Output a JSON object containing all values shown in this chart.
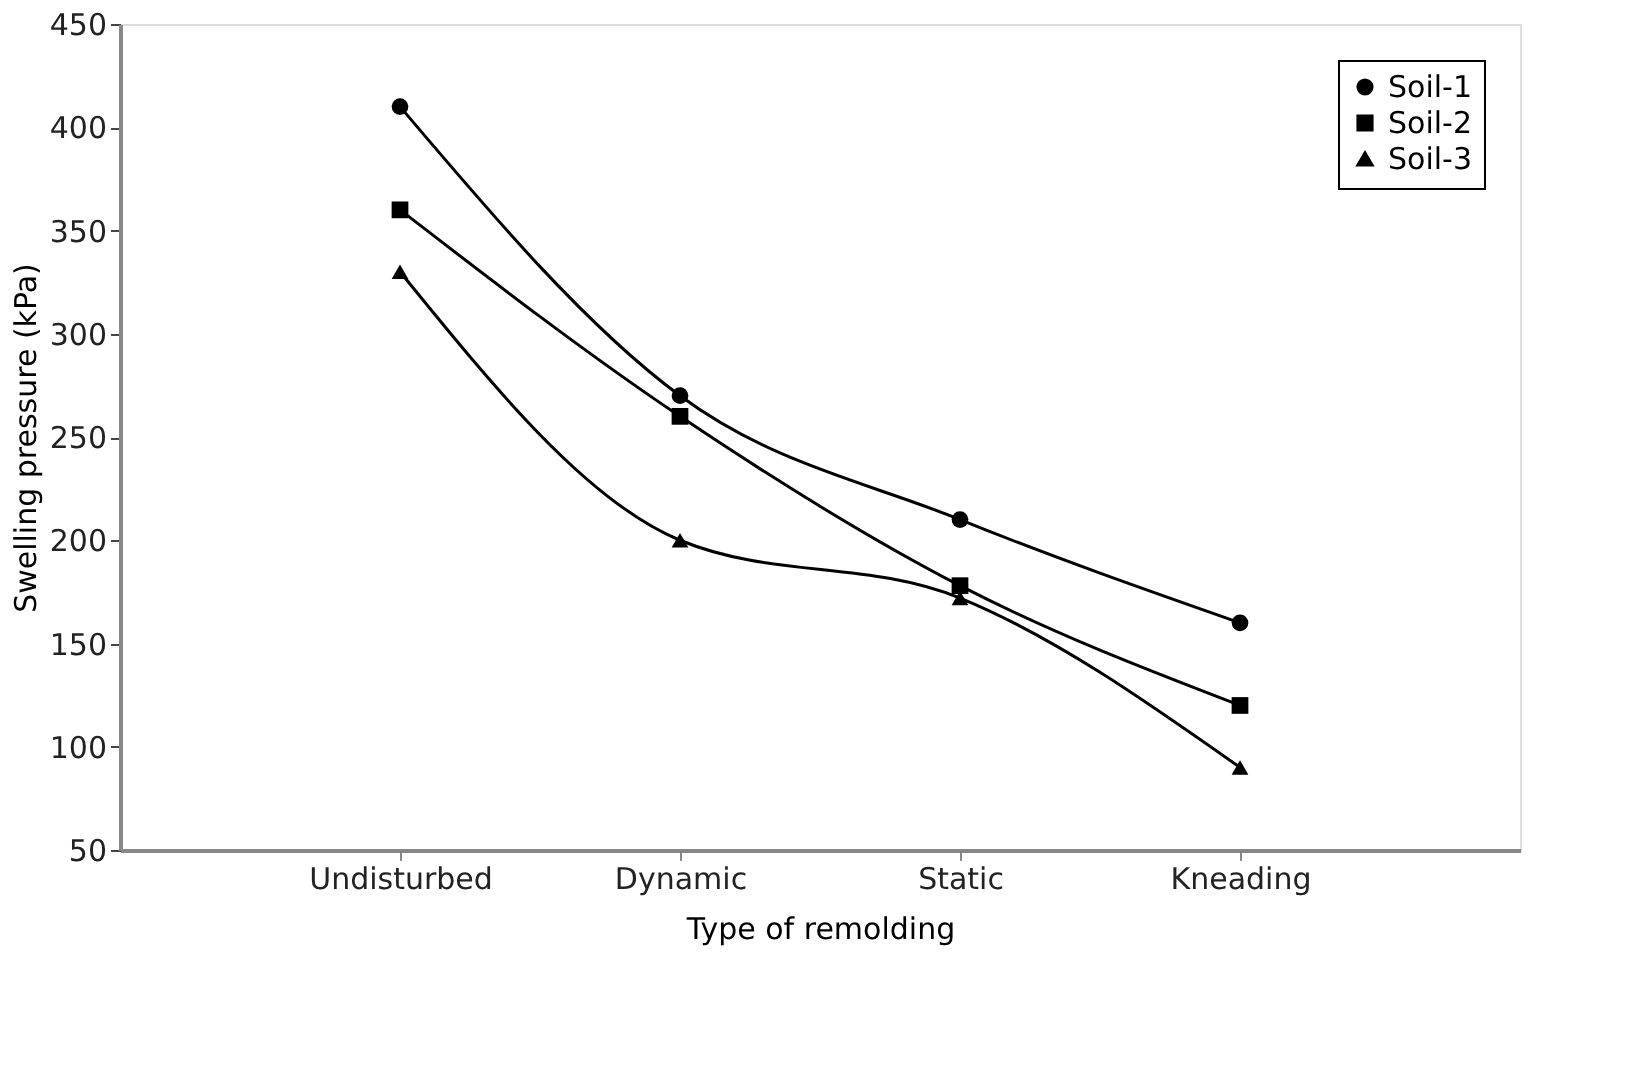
{
  "chart_data": {
    "type": "line",
    "xlabel": "Type of remolding",
    "ylabel": "Swelling pressure (kPa)",
    "categories": [
      "Undisturbed",
      "Dynamic",
      "Static",
      "Kneading"
    ],
    "series": [
      {
        "name": "Soil-1",
        "color": "#000000",
        "marker": "circle",
        "values": [
          410,
          270,
          210,
          160
        ]
      },
      {
        "name": "Soil-2",
        "color": "#000000",
        "marker": "square",
        "values": [
          360,
          260,
          178,
          120
        ]
      },
      {
        "name": "Soil-3",
        "color": "#000000",
        "marker": "triangle",
        "values": [
          330,
          200,
          172,
          90
        ]
      }
    ],
    "ylim": [
      50,
      450
    ],
    "yticks": [
      50,
      100,
      150,
      200,
      250,
      300,
      350,
      400,
      450
    ],
    "grid": false,
    "legend": "top right",
    "line_style": "solid"
  }
}
